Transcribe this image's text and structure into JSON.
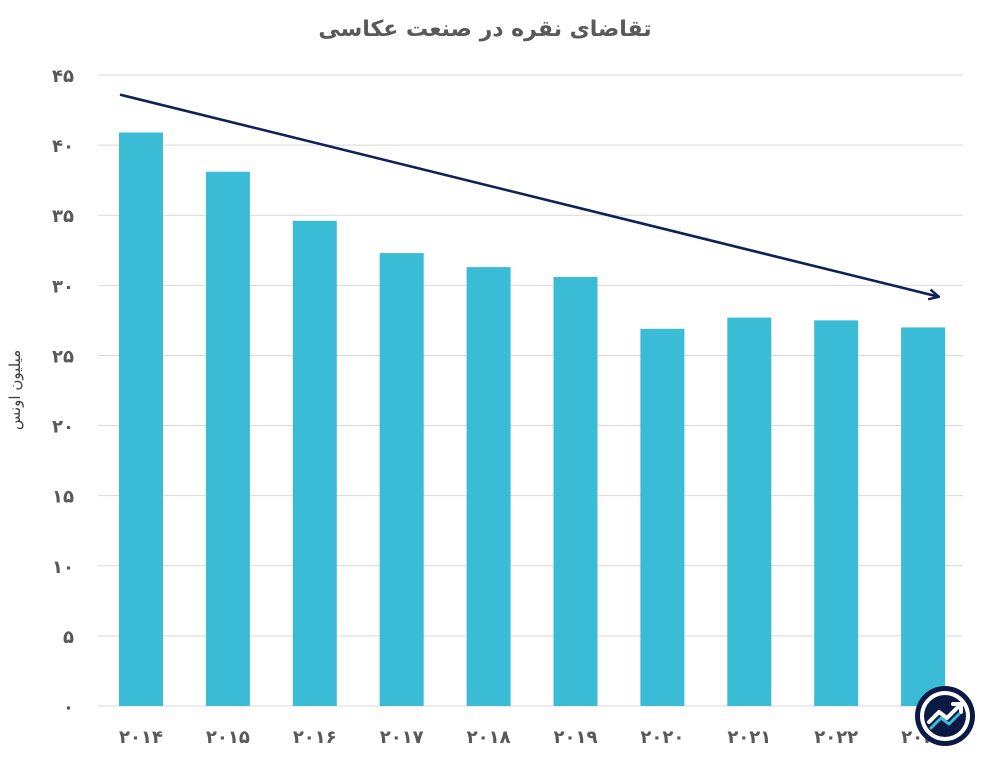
{
  "chart_data": {
    "type": "bar",
    "title": "تقاضای نقره در صنعت عکاسی",
    "xlabel": "",
    "ylabel": "میلیون اونس",
    "categories": [
      "۲۰۱۴",
      "۲۰۱۵",
      "۲۰۱۶",
      "۲۰۱۷",
      "۲۰۱۸",
      "۲۰۱۹",
      "۲۰۲۰",
      "۲۰۲۱",
      "۲۰۲۲",
      "۲۰۲۳"
    ],
    "values": [
      40.9,
      38.1,
      34.6,
      32.3,
      31.3,
      30.6,
      26.9,
      27.7,
      27.5,
      27.0
    ],
    "ylim": [
      0,
      45
    ],
    "yticks": [
      0,
      5,
      10,
      15,
      20,
      25,
      30,
      35,
      40,
      45
    ],
    "ytick_labels": [
      "۰",
      "۵",
      "۱۰",
      "۱۵",
      "۲۰",
      "۲۵",
      "۳۰",
      "۳۵",
      "۴۰",
      "۴۵"
    ],
    "trend_line": {
      "start_value": 43.6,
      "end_value": 29.2,
      "direction": "down",
      "arrow": true
    },
    "grid": true,
    "legend": "none",
    "colors": {
      "bar": "#3bbcd6",
      "trend": "#0d2257",
      "grid": "#d9d9d9",
      "text": "#595959"
    }
  },
  "logo": {
    "icon": "trend-chart-logo-icon"
  }
}
